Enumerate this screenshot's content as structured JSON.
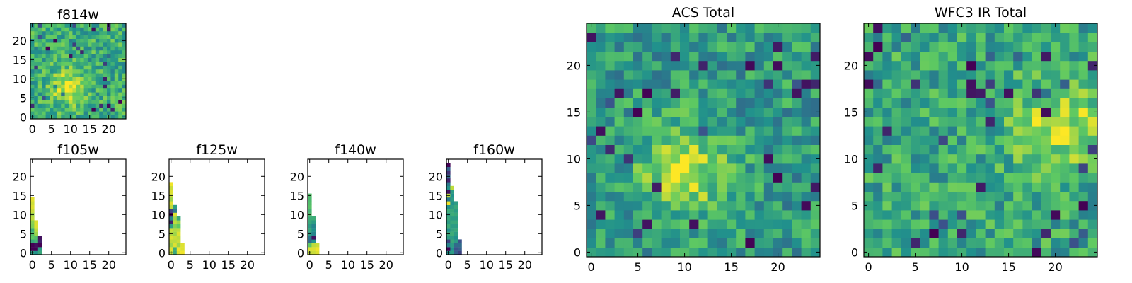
{
  "figure": {
    "background": "#ffffff"
  },
  "colormap": {
    "name": "viridis",
    "stops": [
      "#440154",
      "#3b528b",
      "#21918c",
      "#5ec962",
      "#fde725"
    ]
  },
  "chart_data": [
    {
      "id": "f814w",
      "type": "heatmap",
      "title": "f814w",
      "xlim": [
        -0.5,
        24.5
      ],
      "ylim": [
        -0.5,
        24.5
      ],
      "xticks": [
        0,
        5,
        10,
        15,
        20
      ],
      "yticks": [
        0,
        5,
        10,
        15,
        20
      ],
      "grid": false,
      "size": [
        25,
        25
      ],
      "value_range": [
        0,
        1
      ],
      "peak_center": [
        9,
        8
      ],
      "peak_value": 0.92,
      "background_level": 0.62
    },
    {
      "id": "f105w",
      "type": "heatmap",
      "title": "f105w",
      "xlim": [
        -0.5,
        24.5
      ],
      "ylim": [
        -0.5,
        24.5
      ],
      "xticks": [
        0,
        5,
        10,
        15,
        20
      ],
      "yticks": [
        0,
        5,
        10,
        15,
        20
      ],
      "grid": false,
      "columns": [
        {
          "x": 0,
          "values": [
            0.55,
            0.0,
            0.0,
            0.6,
            0.75,
            0.7,
            0.62,
            0.8,
            0.82,
            0.9,
            0.85,
            0.92,
            0.95,
            0.93,
            0.96
          ]
        },
        {
          "x": 1,
          "values": [
            0.5,
            0.0,
            0.05,
            0.65,
            0.7,
            0.85,
            0.9,
            0.95,
            0.95
          ]
        },
        {
          "x": 2,
          "values": [
            0.6,
            0.55,
            0.0,
            0.1,
            0.05
          ]
        }
      ]
    },
    {
      "id": "f125w",
      "type": "heatmap",
      "title": "f125w",
      "xlim": [
        -0.5,
        24.5
      ],
      "ylim": [
        -0.5,
        24.5
      ],
      "xticks": [
        0,
        5,
        10,
        15,
        20
      ],
      "yticks": [
        0,
        5,
        10,
        15,
        20
      ],
      "grid": false,
      "columns": [
        {
          "x": 0,
          "values": [
            0.9,
            0.95,
            0.85,
            0.9,
            0.95,
            0.88,
            0.92,
            0.55,
            0.1,
            0.45,
            0.0,
            0.2,
            0.9,
            0.95,
            0.85,
            0.93,
            0.95,
            0.92,
            0.98
          ]
        },
        {
          "x": 1,
          "values": [
            0.6,
            0.62,
            0.95,
            0.9,
            0.92,
            0.85,
            0.88,
            0.8,
            0.9,
            0.85,
            0.95,
            0.4,
            0.55
          ]
        },
        {
          "x": 2,
          "values": [
            0.95,
            0.98,
            0.85,
            0.92,
            0.9,
            0.95,
            0.9,
            0.75,
            0.85,
            0.6
          ]
        },
        {
          "x": 3,
          "values": [
            0.98,
            0.95,
            0.95
          ]
        }
      ]
    },
    {
      "id": "f140w",
      "type": "heatmap",
      "title": "f140w",
      "xlim": [
        -0.5,
        24.5
      ],
      "ylim": [
        -0.5,
        24.5
      ],
      "xticks": [
        0,
        5,
        10,
        15,
        20
      ],
      "yticks": [
        0,
        5,
        10,
        15,
        20
      ],
      "grid": false,
      "columns": [
        {
          "x": 0,
          "values": [
            0.9,
            0.95,
            0.75,
            0.35,
            0.4,
            0.55,
            0.6,
            0.55,
            0.6,
            0.62,
            0.7,
            0.65,
            0.72,
            0.7,
            0.68,
            0.7
          ]
        },
        {
          "x": 1,
          "values": [
            0.92,
            0.95,
            0.9,
            0.5,
            0.05,
            0.45,
            0.5,
            0.45,
            0.55,
            0.62
          ]
        },
        {
          "x": 2,
          "values": [
            0.95,
            0.98,
            0.92
          ]
        }
      ]
    },
    {
      "id": "f160w",
      "type": "heatmap",
      "title": "f160w",
      "xlim": [
        -0.5,
        24.5
      ],
      "ylim": [
        -0.5,
        24.5
      ],
      "xticks": [
        0,
        5,
        10,
        15,
        20
      ],
      "yticks": [
        0,
        5,
        10,
        15,
        20
      ],
      "grid": false,
      "columns": [
        {
          "x": 0,
          "values": [
            0.5,
            0.0,
            0.45,
            0.2,
            0.55,
            0.6,
            0.5,
            0.62,
            0.55,
            0.6,
            0.55,
            0.62,
            0.5,
            0.98,
            0.4,
            0.9,
            0.05,
            0.5,
            0.4,
            0.1,
            0.35,
            0.15,
            0.3,
            0.0
          ]
        },
        {
          "x": 1,
          "values": [
            0.55,
            0.5,
            0.55,
            0.6,
            0.55,
            0.62,
            0.58,
            0.55,
            0.6,
            0.55,
            0.62,
            0.6,
            0.55,
            0.5,
            0.55,
            0.5,
            0.55,
            0.9
          ]
        },
        {
          "x": 2,
          "values": [
            0.3,
            0.25,
            0.35,
            0.55,
            0.5,
            0.55,
            0.6,
            0.55,
            0.6,
            0.55,
            0.6,
            0.55,
            0.6,
            0.55
          ]
        },
        {
          "x": 3,
          "values": [
            0.2,
            0.3,
            0.35,
            0.25
          ]
        }
      ]
    },
    {
      "id": "acs_total",
      "type": "heatmap",
      "title": "ACS Total",
      "xlim": [
        -0.5,
        24.5
      ],
      "ylim": [
        -0.5,
        24.5
      ],
      "xticks": [
        0,
        5,
        10,
        15,
        20
      ],
      "yticks": [
        0,
        5,
        10,
        15,
        20
      ],
      "grid": false,
      "size": [
        25,
        25
      ],
      "value_range": [
        0,
        1
      ],
      "peak_center": [
        10,
        8.5
      ],
      "peak_value": 0.9,
      "background_level": 0.55,
      "low_pixels": [
        [
          17,
          20
        ],
        [
          20,
          20
        ],
        [
          12,
          20
        ],
        [
          3,
          17
        ],
        [
          1,
          13
        ],
        [
          7,
          7
        ],
        [
          11,
          3
        ],
        [
          23,
          5
        ],
        [
          20,
          22
        ],
        [
          9,
          21
        ],
        [
          24,
          21
        ],
        [
          22,
          17
        ],
        [
          23,
          18
        ],
        [
          19,
          10
        ]
      ]
    },
    {
      "id": "wfc3_ir_total",
      "type": "heatmap",
      "title": "WFC3 IR Total",
      "xlim": [
        -0.5,
        24.5
      ],
      "ylim": [
        -0.5,
        24.5
      ],
      "xticks": [
        0,
        5,
        10,
        15,
        20
      ],
      "yticks": [
        0,
        5,
        10,
        15,
        20
      ],
      "grid": false,
      "size": [
        25,
        25
      ],
      "value_range": [
        0,
        1
      ],
      "peak_center": [
        20.5,
        13.5
      ],
      "peak_value": 0.9,
      "background_level": 0.6,
      "low_pixels": [
        [
          11,
          18
        ],
        [
          12,
          17
        ],
        [
          11,
          17
        ],
        [
          19,
          21
        ],
        [
          5,
          1
        ],
        [
          10,
          2
        ],
        [
          20,
          4
        ],
        [
          18,
          0
        ],
        [
          1,
          24
        ],
        [
          13,
          14
        ],
        [
          19,
          15
        ]
      ]
    }
  ]
}
